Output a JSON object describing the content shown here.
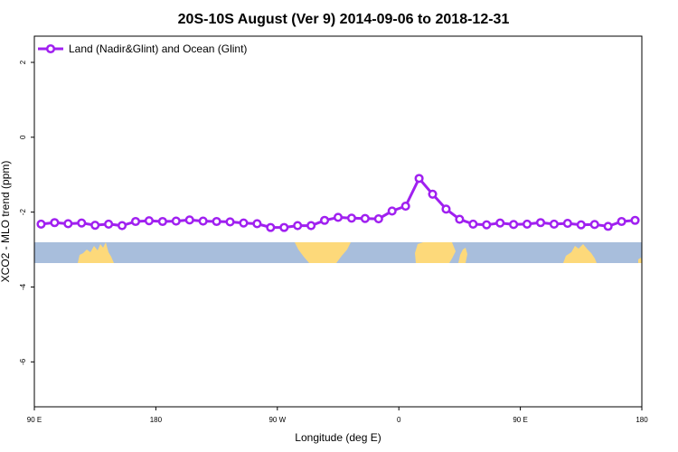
{
  "chart_data": {
    "type": "line",
    "title": "20S-10S August (Ver 9)   2014-09-06 to 2018-12-31",
    "xlabel": "Longitude (deg E)",
    "ylabel": "XCO2 - MLO trend (ppm)",
    "x_ticks": [
      {
        "value": 90,
        "label": "90 E"
      },
      {
        "value": 180,
        "label": "180"
      },
      {
        "value": 270,
        "label": "90 W"
      },
      {
        "value": 360,
        "label": "0"
      },
      {
        "value": 450,
        "label": "90 E"
      },
      {
        "value": 540,
        "label": "180"
      }
    ],
    "y_ticks": [
      {
        "value": 2,
        "label": "2"
      },
      {
        "value": 0,
        "label": "0"
      },
      {
        "value": -2,
        "label": "-2"
      },
      {
        "value": -4,
        "label": "-4"
      },
      {
        "value": -6,
        "label": "-6"
      }
    ],
    "xlim": [
      90,
      540
    ],
    "ylim": [
      -7.2,
      2.7
    ],
    "grid": false,
    "legend_position": "top-left",
    "series": [
      {
        "name": "Land (Nadir&Glint) and Ocean (Glint)",
        "color": "#a020f0",
        "marker": "open-circle",
        "x": [
          95,
          105,
          115,
          125,
          135,
          145,
          155,
          165,
          175,
          185,
          195,
          205,
          215,
          225,
          235,
          245,
          255,
          265,
          275,
          285,
          295,
          305,
          315,
          325,
          335,
          345,
          355,
          365,
          375,
          385,
          395,
          405,
          415,
          425,
          435,
          445,
          455,
          465,
          475,
          485,
          495,
          505,
          515,
          525,
          535
        ],
        "y": [
          -2.32,
          -2.28,
          -2.31,
          -2.29,
          -2.35,
          -2.32,
          -2.36,
          -2.25,
          -2.23,
          -2.25,
          -2.24,
          -2.21,
          -2.24,
          -2.25,
          -2.26,
          -2.29,
          -2.31,
          -2.41,
          -2.41,
          -2.36,
          -2.36,
          -2.22,
          -2.14,
          -2.16,
          -2.17,
          -2.18,
          -1.97,
          -1.84,
          -1.1,
          -1.52,
          -1.92,
          -2.19,
          -2.32,
          -2.34,
          -2.29,
          -2.33,
          -2.32,
          -2.28,
          -2.32,
          -2.3,
          -2.34,
          -2.33,
          -2.38,
          -2.25,
          -2.22
        ]
      }
    ],
    "map_strip": {
      "ocean_color": "#a8bedc",
      "land_color": "#fdd97a",
      "lat_range": "20S-10S"
    }
  }
}
